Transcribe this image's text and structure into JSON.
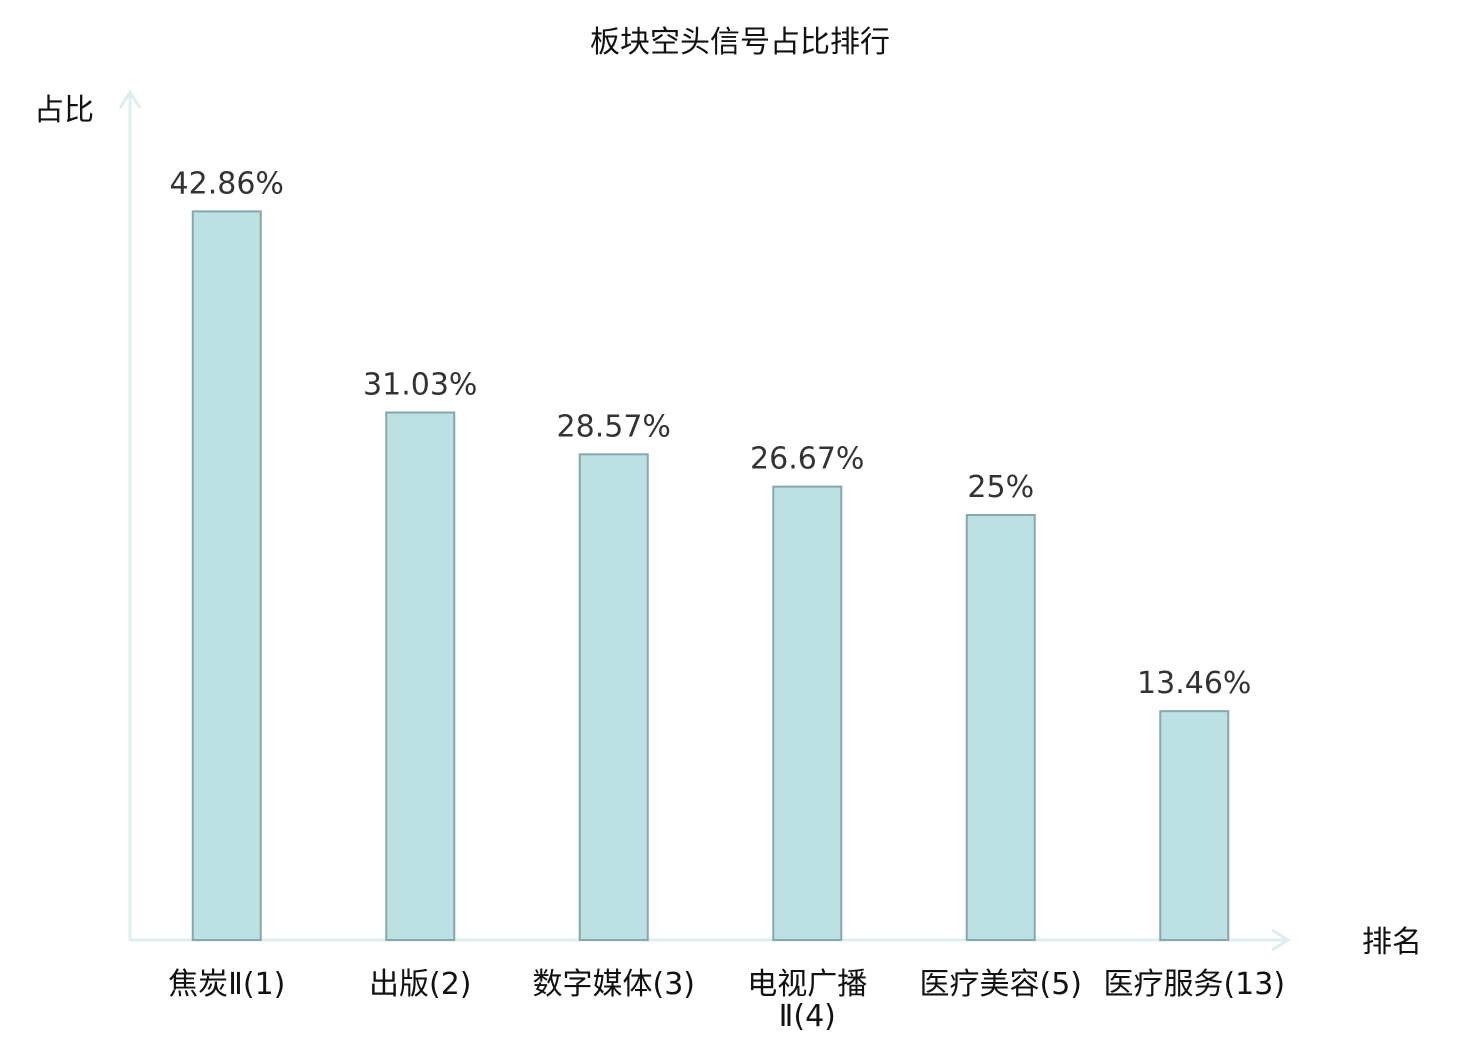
{
  "chart_data": {
    "type": "bar",
    "title": "板块空头信号占比排行",
    "ylabel": "占比",
    "xlabel": "排名",
    "ylim": [
      0,
      50
    ],
    "grid": false,
    "categories": [
      {
        "name": "焦炭Ⅱ",
        "rank": "(1)",
        "highlight": false
      },
      {
        "name": "出版",
        "rank": "(2)",
        "highlight": false
      },
      {
        "name": "数字媒体",
        "rank": "(3)",
        "highlight": false
      },
      {
        "name": "电视广播",
        "name2": "Ⅱ",
        "rank": "(4)",
        "highlight": false
      },
      {
        "name": "医疗美容",
        "rank": "(5)",
        "highlight": false
      },
      {
        "name": "医疗服务",
        "rank": "(13)",
        "highlight": true
      }
    ],
    "values": [
      42.86,
      31.03,
      28.57,
      26.67,
      25,
      13.46
    ],
    "value_labels": [
      "42.86%",
      "31.03%",
      "28.57%",
      "26.67%",
      "25%",
      "13.46%"
    ]
  },
  "colors": {
    "bar_fill": "#bde0e3",
    "bar_stroke": "#86a8ac",
    "axis": "#dcefee",
    "highlight_text": "#e21b1b",
    "text": "#111111",
    "value_text": "#333333"
  }
}
